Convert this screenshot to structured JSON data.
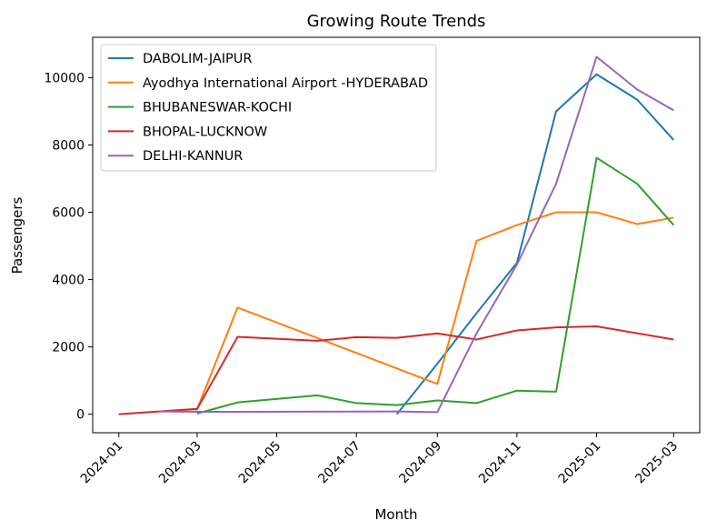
{
  "chart_data": {
    "type": "line",
    "title": "Growing Route Trends",
    "xlabel": "Month",
    "ylabel": "Passengers",
    "xlim": [
      "2023-12-12",
      "2025-03-21"
    ],
    "ylim": [
      -550,
      11200
    ],
    "x_ticks": [
      "2024-01",
      "2024-03",
      "2024-05",
      "2024-07",
      "2024-09",
      "2024-11",
      "2025-01",
      "2025-03"
    ],
    "y_ticks": [
      0,
      2000,
      4000,
      6000,
      8000,
      10000
    ],
    "y_tick_labels": [
      "0",
      "2000",
      "4000",
      "6000",
      "8000",
      "10000"
    ],
    "grid": false,
    "legend_position": "upper-left",
    "series": [
      {
        "name": "DABOLIM-JAIPUR",
        "color": "#1f77b4",
        "points": [
          [
            "2024-08",
            0
          ],
          [
            "2024-09",
            1500
          ],
          [
            "2024-10",
            3000
          ],
          [
            "2024-11",
            4500
          ],
          [
            "2024-12",
            9000
          ],
          [
            "2025-01",
            10100
          ],
          [
            "2025-02",
            9350
          ],
          [
            "2025-03",
            8150
          ]
        ]
      },
      {
        "name": "Ayodhya International Airport -HYDERABAD",
        "color": "#ff7f0e",
        "points": [
          [
            "2024-02",
            80
          ],
          [
            "2024-03",
            150
          ],
          [
            "2024-04",
            3170
          ],
          [
            "2024-09",
            900
          ],
          [
            "2024-10",
            5150
          ],
          [
            "2024-11",
            5620
          ],
          [
            "2024-12",
            6000
          ],
          [
            "2025-01",
            6000
          ],
          [
            "2025-02",
            5650
          ],
          [
            "2025-03",
            5840
          ]
        ]
      },
      {
        "name": "BHUBANESWAR-KOCHI",
        "color": "#2ca02c",
        "points": [
          [
            "2024-03",
            20
          ],
          [
            "2024-04",
            350
          ],
          [
            "2024-06",
            560
          ],
          [
            "2024-07",
            330
          ],
          [
            "2024-08",
            270
          ],
          [
            "2024-09",
            410
          ],
          [
            "2024-10",
            330
          ],
          [
            "2024-11",
            700
          ],
          [
            "2024-12",
            670
          ],
          [
            "2025-01",
            7620
          ],
          [
            "2025-02",
            6850
          ],
          [
            "2025-03",
            5620
          ]
        ]
      },
      {
        "name": "BHOPAL-LUCKNOW",
        "color": "#d62728",
        "points": [
          [
            "2024-01",
            0
          ],
          [
            "2024-03",
            160
          ],
          [
            "2024-04",
            2300
          ],
          [
            "2024-06",
            2180
          ],
          [
            "2024-07",
            2290
          ],
          [
            "2024-08",
            2270
          ],
          [
            "2024-09",
            2400
          ],
          [
            "2024-10",
            2220
          ],
          [
            "2024-11",
            2490
          ],
          [
            "2024-12",
            2580
          ],
          [
            "2025-01",
            2610
          ],
          [
            "2025-03",
            2220
          ]
        ]
      },
      {
        "name": "DELHI-KANNUR",
        "color": "#9467bd",
        "points": [
          [
            "2024-02",
            80
          ],
          [
            "2024-03",
            70
          ],
          [
            "2024-08",
            80
          ],
          [
            "2024-09",
            60
          ],
          [
            "2024-10",
            2400
          ],
          [
            "2024-11",
            4450
          ],
          [
            "2024-12",
            6850
          ],
          [
            "2025-01",
            10620
          ],
          [
            "2025-02",
            9650
          ],
          [
            "2025-03",
            9030
          ]
        ]
      }
    ]
  }
}
